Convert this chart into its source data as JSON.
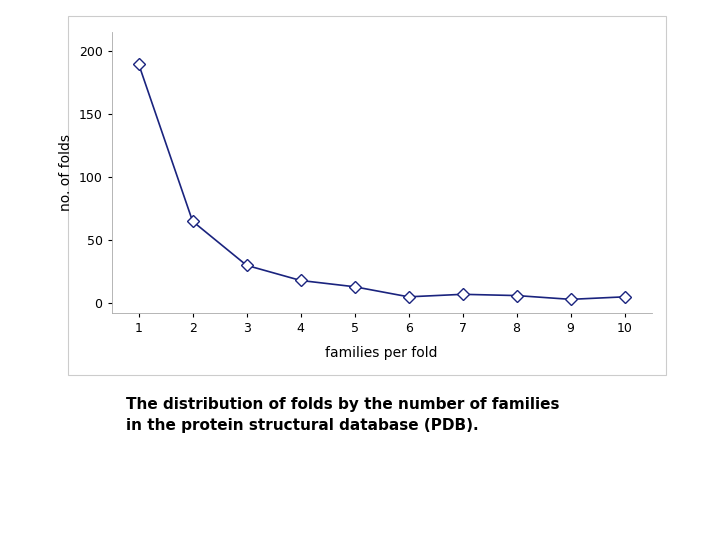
{
  "x": [
    1,
    2,
    3,
    4,
    5,
    6,
    7,
    8,
    9,
    10
  ],
  "y": [
    190,
    65,
    30,
    18,
    13,
    5,
    7,
    6,
    3,
    5
  ],
  "line_color": "#1a237e",
  "marker": "D",
  "marker_facecolor": "white",
  "marker_edgecolor": "#1a237e",
  "marker_size": 6,
  "xlabel": "families per fold",
  "ylabel": "no. of folds",
  "xlim": [
    0.5,
    10.5
  ],
  "ylim": [
    -8,
    215
  ],
  "yticks": [
    0,
    50,
    100,
    150,
    200
  ],
  "xticks": [
    1,
    2,
    3,
    4,
    5,
    6,
    7,
    8,
    9,
    10
  ],
  "caption_line1": "The distribution of folds by the number of families",
  "caption_line2": "in the protein structural database (PDB).",
  "bg_color": "#ffffff",
  "plot_bg_color": "#ffffff",
  "box_color": "#cccccc",
  "grid": false
}
